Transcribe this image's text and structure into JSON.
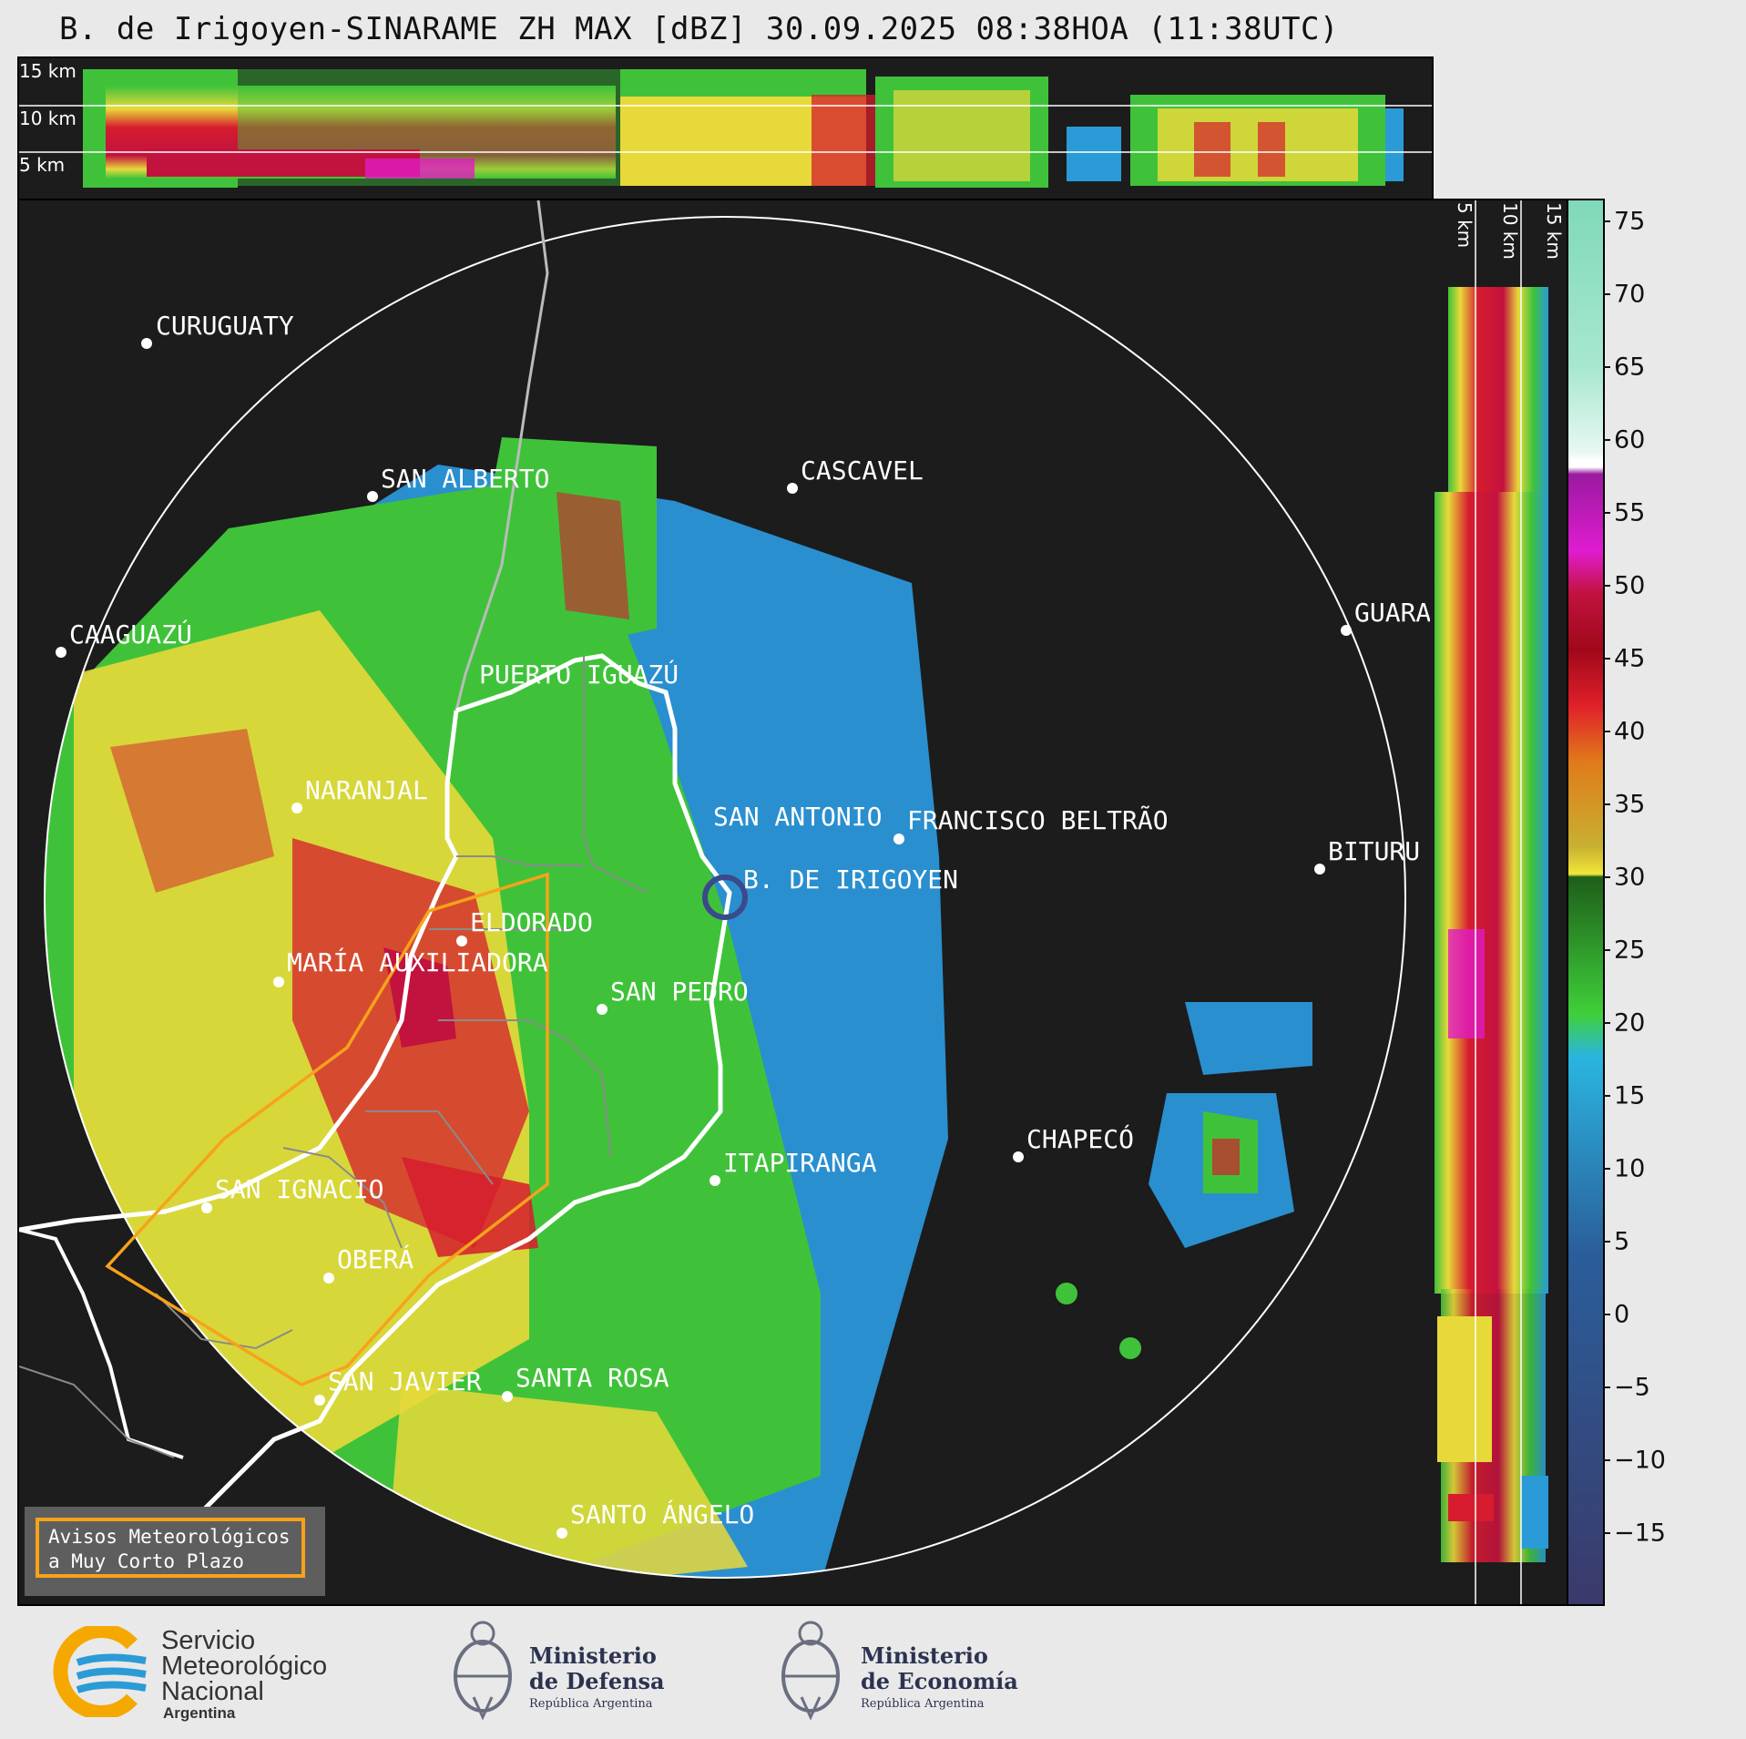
{
  "title": "B. de Irigoyen-SINARAME ZH MAX [dBZ] 30.09.2025 08:38HOA (11:38UTC)",
  "top_panel": {
    "km_labels": [
      "15 km",
      "10 km",
      "5 km"
    ]
  },
  "side_panel": {
    "km_labels": [
      "5 km",
      "10 km",
      "15 km"
    ]
  },
  "colorbar": {
    "ticks": [
      "75",
      "70",
      "65",
      "60",
      "55",
      "50",
      "45",
      "40",
      "35",
      "30",
      "25",
      "20",
      "15",
      "10",
      "5",
      "0",
      "−5",
      "−10",
      "−15"
    ],
    "range": [
      -20,
      77
    ]
  },
  "cities": [
    {
      "name": "CURUGUATY"
    },
    {
      "name": "SAN ALBERTO"
    },
    {
      "name": "CASCAVEL"
    },
    {
      "name": "CAAGUAZÚ"
    },
    {
      "name": "GUARA"
    },
    {
      "name": "PUERTO IGUAZÚ"
    },
    {
      "name": "NARANJAL"
    },
    {
      "name": "SAN ANTONIO"
    },
    {
      "name": "FRANCISCO BELTRÃO"
    },
    {
      "name": "BITURU"
    },
    {
      "name": "B. DE IRIGOYEN"
    },
    {
      "name": "ELDORADO"
    },
    {
      "name": "MARÍA AUXILIADORA"
    },
    {
      "name": "SAN PEDRO"
    },
    {
      "name": "CHAPECÓ"
    },
    {
      "name": "ITAPIRANGA"
    },
    {
      "name": "SAN IGNACIO"
    },
    {
      "name": "OBERÁ"
    },
    {
      "name": "SAN JAVIER"
    },
    {
      "name": "SANTA ROSA"
    },
    {
      "name": "SANTO ÁNGELO"
    }
  ],
  "warning_box": {
    "line1": "Avisos Meteorológicos",
    "line2": "a Muy Corto Plazo"
  },
  "logos": {
    "smn": {
      "line1": "Servicio",
      "line2": "Meteorológico",
      "line3": "Nacional",
      "line4": "Argentina"
    },
    "defensa": {
      "line1": "Ministerio",
      "line2": "de Defensa",
      "line3": "República Argentina"
    },
    "economia": {
      "line1": "Ministerio",
      "line2": "de Economía",
      "line3": "República Argentina"
    }
  },
  "colors": {
    "background": "#1c1c1c",
    "accent_orange": "#f7a21b",
    "smn_blue": "#2a9bd6",
    "smn_yellow": "#f5a800"
  }
}
